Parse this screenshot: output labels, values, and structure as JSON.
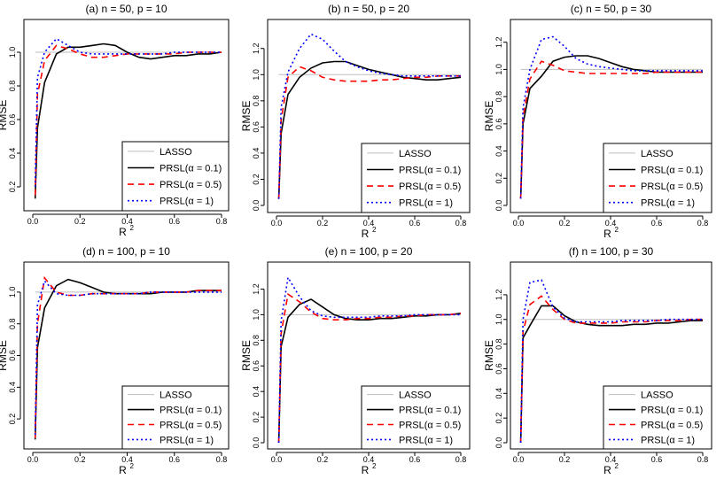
{
  "chart_data": [
    {
      "type": "line",
      "title": "(a)  n = 50,  p = 10",
      "xlabel": "R",
      "xlabel_sup": "2",
      "ylabel": "RMSE",
      "xlim": [
        0,
        0.8
      ],
      "ylim": [
        0.1,
        1.1
      ],
      "xticks": [
        "0.0",
        "0.2",
        "0.4",
        "0.6",
        "0.8"
      ],
      "yticks": [
        "0.2",
        "0.4",
        "0.6",
        "0.8",
        "1.0"
      ],
      "x": [
        0.01,
        0.02,
        0.05,
        0.1,
        0.15,
        0.2,
        0.25,
        0.3,
        0.35,
        0.4,
        0.45,
        0.5,
        0.55,
        0.6,
        0.65,
        0.7,
        0.75,
        0.8
      ],
      "series": [
        {
          "name": "LASSO",
          "legend_prefix": "LASSO",
          "legend_alpha": "",
          "color": "#bebebe",
          "dash": "",
          "values": [
            1.0,
            1.0,
            1.0,
            1.0,
            1.0,
            1.0,
            1.0,
            1.0,
            1.0,
            1.0,
            1.0,
            1.0,
            1.0,
            1.0,
            1.0,
            1.0,
            1.0,
            1.0
          ]
        },
        {
          "name": "PRSL(α = 0.1)",
          "legend_prefix": "PRSL(",
          "legend_alpha": "α = 0.1)",
          "color": "#000000",
          "dash": "",
          "values": [
            0.13,
            0.55,
            0.82,
            0.99,
            1.03,
            1.03,
            1.04,
            1.05,
            1.04,
            1.0,
            0.97,
            0.96,
            0.97,
            0.98,
            0.98,
            0.99,
            0.99,
            1.0
          ]
        },
        {
          "name": "PRSL(α = 0.5)",
          "legend_prefix": "PRSL(",
          "legend_alpha": "α = 0.5)",
          "color": "#ff0000",
          "dash": "7,5",
          "values": [
            0.15,
            0.75,
            0.95,
            1.04,
            1.02,
            0.99,
            0.97,
            0.97,
            0.98,
            0.99,
            0.99,
            0.99,
            0.99,
            0.99,
            1.0,
            1.0,
            1.0,
            1.0
          ]
        },
        {
          "name": "PRSL(α = 1)",
          "legend_prefix": "PRSL(",
          "legend_alpha": "α = 1)",
          "color": "#0000ff",
          "dash": "2,3",
          "values": [
            0.2,
            0.85,
            1.0,
            1.08,
            1.04,
            1.0,
            0.99,
            0.99,
            0.99,
            0.99,
            0.99,
            0.99,
            0.99,
            1.0,
            1.0,
            1.0,
            1.0,
            1.0
          ]
        }
      ]
    },
    {
      "type": "line",
      "title": "(b)  n = 50,  p = 20",
      "xlabel": "R",
      "xlabel_sup": "2",
      "ylabel": "RMSE",
      "xlim": [
        0,
        0.8
      ],
      "ylim": [
        0,
        1.3
      ],
      "xticks": [
        "0.0",
        "0.2",
        "0.4",
        "0.6",
        "0.8"
      ],
      "yticks": [
        "0.0",
        "0.2",
        "0.4",
        "0.6",
        "0.8",
        "1.0",
        "1.2"
      ],
      "x": [
        0.01,
        0.02,
        0.05,
        0.1,
        0.15,
        0.2,
        0.25,
        0.3,
        0.35,
        0.4,
        0.45,
        0.5,
        0.55,
        0.6,
        0.65,
        0.7,
        0.75,
        0.8
      ],
      "series": [
        {
          "name": "LASSO",
          "legend_prefix": "LASSO",
          "legend_alpha": "",
          "color": "#bebebe",
          "dash": "",
          "values": [
            1.0,
            1.0,
            1.0,
            1.0,
            1.0,
            1.0,
            1.0,
            1.0,
            1.0,
            1.0,
            1.0,
            1.0,
            1.0,
            1.0,
            1.0,
            1.0,
            1.0,
            1.0
          ]
        },
        {
          "name": "PRSL(α = 0.1)",
          "legend_prefix": "PRSL(",
          "legend_alpha": "α = 0.1)",
          "color": "#000000",
          "dash": "",
          "values": [
            0.05,
            0.55,
            0.85,
            0.98,
            1.05,
            1.09,
            1.1,
            1.1,
            1.07,
            1.04,
            1.02,
            1.0,
            0.98,
            0.97,
            0.96,
            0.96,
            0.97,
            0.98
          ]
        },
        {
          "name": "PRSL(α = 0.5)",
          "legend_prefix": "PRSL(",
          "legend_alpha": "α = 0.5)",
          "color": "#ff0000",
          "dash": "7,5",
          "values": [
            0.05,
            0.65,
            0.98,
            1.06,
            1.03,
            0.98,
            0.96,
            0.95,
            0.95,
            0.95,
            0.96,
            0.96,
            0.97,
            0.98,
            0.98,
            0.99,
            0.99,
            0.99
          ]
        },
        {
          "name": "PRSL(α = 1)",
          "legend_prefix": "PRSL(",
          "legend_alpha": "α = 1)",
          "color": "#0000ff",
          "dash": "2,3",
          "values": [
            0.05,
            0.75,
            1.02,
            1.2,
            1.31,
            1.27,
            1.18,
            1.1,
            1.06,
            1.03,
            1.01,
            1.0,
            0.99,
            0.99,
            0.99,
            0.99,
            0.99,
            0.99
          ]
        }
      ]
    },
    {
      "type": "line",
      "title": "(c)  n = 50,  p = 30",
      "xlabel": "R",
      "xlabel_sup": "2",
      "ylabel": "RMSE",
      "xlim": [
        0,
        0.8
      ],
      "ylim": [
        0,
        1.25
      ],
      "xticks": [
        "0.0",
        "0.2",
        "0.4",
        "0.6",
        "0.8"
      ],
      "yticks": [
        "0.0",
        "0.2",
        "0.4",
        "0.6",
        "0.8",
        "1.0",
        "1.2"
      ],
      "x": [
        0.01,
        0.02,
        0.05,
        0.1,
        0.15,
        0.2,
        0.25,
        0.3,
        0.35,
        0.4,
        0.45,
        0.5,
        0.55,
        0.6,
        0.65,
        0.7,
        0.75,
        0.8
      ],
      "series": [
        {
          "name": "LASSO",
          "legend_prefix": "LASSO",
          "legend_alpha": "",
          "color": "#bebebe",
          "dash": "",
          "values": [
            1.0,
            1.0,
            1.0,
            1.0,
            1.0,
            1.0,
            1.0,
            1.0,
            1.0,
            1.0,
            1.0,
            1.0,
            1.0,
            1.0,
            1.0,
            1.0,
            1.0,
            1.0
          ]
        },
        {
          "name": "PRSL(α = 0.1)",
          "legend_prefix": "PRSL(",
          "legend_alpha": "α = 0.1)",
          "color": "#000000",
          "dash": "",
          "values": [
            0.05,
            0.6,
            0.86,
            0.95,
            1.06,
            1.09,
            1.1,
            1.1,
            1.08,
            1.05,
            1.02,
            1.0,
            0.99,
            0.98,
            0.98,
            0.98,
            0.98,
            0.98
          ]
        },
        {
          "name": "PRSL(α = 0.5)",
          "legend_prefix": "PRSL(",
          "legend_alpha": "α = 0.5)",
          "color": "#ff0000",
          "dash": "7,5",
          "values": [
            0.05,
            0.65,
            0.93,
            1.06,
            1.03,
            0.99,
            0.98,
            0.97,
            0.97,
            0.97,
            0.97,
            0.97,
            0.97,
            0.98,
            0.98,
            0.98,
            0.98,
            0.98
          ]
        },
        {
          "name": "PRSL(α = 1)",
          "legend_prefix": "PRSL(",
          "legend_alpha": "α = 1)",
          "color": "#0000ff",
          "dash": "2,3",
          "values": [
            0.05,
            0.72,
            1.0,
            1.22,
            1.24,
            1.17,
            1.08,
            1.04,
            1.02,
            1.01,
            1.0,
            0.99,
            0.99,
            0.99,
            0.99,
            0.99,
            0.99,
            0.99
          ]
        }
      ]
    },
    {
      "type": "line",
      "title": "(d)  n = 100,  p = 10",
      "xlabel": "R",
      "xlabel_sup": "2",
      "ylabel": "RMSE",
      "xlim": [
        0,
        0.8
      ],
      "ylim": [
        0.05,
        1.1
      ],
      "xticks": [
        "0.0",
        "0.2",
        "0.4",
        "0.6",
        "0.8"
      ],
      "yticks": [
        "0.2",
        "0.4",
        "0.6",
        "0.8",
        "1.0"
      ],
      "x": [
        0.01,
        0.02,
        0.05,
        0.1,
        0.15,
        0.2,
        0.25,
        0.3,
        0.35,
        0.4,
        0.45,
        0.5,
        0.55,
        0.6,
        0.65,
        0.7,
        0.75,
        0.8
      ],
      "series": [
        {
          "name": "LASSO",
          "legend_prefix": "LASSO",
          "legend_alpha": "",
          "color": "#bebebe",
          "dash": "",
          "values": [
            1.0,
            1.0,
            1.0,
            1.0,
            1.0,
            1.0,
            1.0,
            1.0,
            1.0,
            1.0,
            1.0,
            1.0,
            1.0,
            1.0,
            1.0,
            1.0,
            1.0,
            1.0
          ]
        },
        {
          "name": "PRSL(α = 0.1)",
          "legend_prefix": "PRSL(",
          "legend_alpha": "α = 0.1)",
          "color": "#000000",
          "dash": "",
          "values": [
            0.07,
            0.65,
            0.9,
            1.04,
            1.08,
            1.06,
            1.03,
            1.0,
            0.99,
            0.99,
            0.99,
            0.99,
            1.0,
            1.0,
            1.0,
            1.01,
            1.01,
            1.01
          ]
        },
        {
          "name": "PRSL(α = 0.5)",
          "legend_prefix": "PRSL(",
          "legend_alpha": "α = 0.5)",
          "color": "#ff0000",
          "dash": "7,5",
          "values": [
            0.08,
            0.8,
            1.09,
            1.0,
            0.98,
            0.98,
            0.99,
            0.99,
            0.99,
            0.99,
            0.99,
            1.0,
            1.0,
            1.0,
            1.0,
            1.01,
            1.01,
            1.01
          ]
        },
        {
          "name": "PRSL(α = 1)",
          "legend_prefix": "PRSL(",
          "legend_alpha": "α = 1)",
          "color": "#0000ff",
          "dash": "2,3",
          "values": [
            0.1,
            0.92,
            1.07,
            0.99,
            0.98,
            0.98,
            0.99,
            0.99,
            0.99,
            0.99,
            0.99,
            1.0,
            1.0,
            1.0,
            1.0,
            1.0,
            1.0,
            1.0
          ]
        }
      ]
    },
    {
      "type": "line",
      "title": "(e)  n = 100,  p = 20",
      "xlabel": "R",
      "xlabel_sup": "2",
      "ylabel": "RMSE",
      "xlim": [
        0,
        0.8
      ],
      "ylim": [
        0,
        1.3
      ],
      "xticks": [
        "0.0",
        "0.2",
        "0.4",
        "0.6",
        "0.8"
      ],
      "yticks": [
        "0.0",
        "0.2",
        "0.4",
        "0.6",
        "0.8",
        "1.0",
        "1.2"
      ],
      "x": [
        0.01,
        0.02,
        0.05,
        0.1,
        0.15,
        0.2,
        0.25,
        0.3,
        0.35,
        0.4,
        0.45,
        0.5,
        0.55,
        0.6,
        0.65,
        0.7,
        0.75,
        0.8
      ],
      "series": [
        {
          "name": "LASSO",
          "legend_prefix": "LASSO",
          "legend_alpha": "",
          "color": "#bebebe",
          "dash": "",
          "values": [
            1.0,
            1.0,
            1.0,
            1.0,
            1.0,
            1.0,
            1.0,
            1.0,
            1.0,
            1.0,
            1.0,
            1.0,
            1.0,
            1.0,
            1.0,
            1.0,
            1.0,
            1.0
          ]
        },
        {
          "name": "PRSL(α = 0.1)",
          "legend_prefix": "PRSL(",
          "legend_alpha": "α = 0.1)",
          "color": "#000000",
          "dash": "",
          "values": [
            0.0,
            0.75,
            0.98,
            1.08,
            1.12,
            1.06,
            1.0,
            0.97,
            0.96,
            0.96,
            0.97,
            0.97,
            0.98,
            0.99,
            0.99,
            1.0,
            1.0,
            1.01
          ]
        },
        {
          "name": "PRSL(α = 0.5)",
          "legend_prefix": "PRSL(",
          "legend_alpha": "α = 0.5)",
          "color": "#ff0000",
          "dash": "7,5",
          "values": [
            0.0,
            0.85,
            1.16,
            1.1,
            1.02,
            0.97,
            0.96,
            0.96,
            0.97,
            0.97,
            0.98,
            0.98,
            0.99,
            0.99,
            1.0,
            1.0,
            1.0,
            1.01
          ]
        },
        {
          "name": "PRSL(α = 1)",
          "legend_prefix": "PRSL(",
          "legend_alpha": "α = 1)",
          "color": "#0000ff",
          "dash": "2,3",
          "values": [
            0.0,
            0.95,
            1.29,
            1.14,
            1.03,
            0.99,
            0.98,
            0.98,
            0.98,
            0.98,
            0.99,
            0.99,
            0.99,
            1.0,
            1.0,
            1.0,
            1.0,
            1.0
          ]
        }
      ]
    },
    {
      "type": "line",
      "title": "(f)  n = 100,  p = 30",
      "xlabel": "R",
      "xlabel_sup": "2",
      "ylabel": "RMSE",
      "xlim": [
        0,
        0.8
      ],
      "ylim": [
        0,
        1.35
      ],
      "xticks": [
        "0.0",
        "0.2",
        "0.4",
        "0.6",
        "0.8"
      ],
      "yticks": [
        "0.0",
        "0.2",
        "0.4",
        "0.6",
        "0.8",
        "1.0",
        "1.2"
      ],
      "x": [
        0.01,
        0.02,
        0.05,
        0.1,
        0.15,
        0.2,
        0.25,
        0.3,
        0.35,
        0.4,
        0.45,
        0.5,
        0.55,
        0.6,
        0.65,
        0.7,
        0.75,
        0.8
      ],
      "series": [
        {
          "name": "LASSO",
          "legend_prefix": "LASSO",
          "legend_alpha": "",
          "color": "#bebebe",
          "dash": "",
          "values": [
            1.0,
            1.0,
            1.0,
            1.0,
            1.0,
            1.0,
            1.0,
            1.0,
            1.0,
            1.0,
            1.0,
            1.0,
            1.0,
            1.0,
            1.0,
            1.0,
            1.0,
            1.0
          ]
        },
        {
          "name": "PRSL(α = 0.1)",
          "legend_prefix": "PRSL(",
          "legend_alpha": "α = 0.1)",
          "color": "#000000",
          "dash": "",
          "values": [
            0.0,
            0.85,
            0.95,
            1.11,
            1.11,
            1.03,
            0.98,
            0.96,
            0.95,
            0.95,
            0.95,
            0.96,
            0.96,
            0.97,
            0.97,
            0.98,
            0.99,
            0.99
          ]
        },
        {
          "name": "PRSL(α = 0.5)",
          "legend_prefix": "PRSL(",
          "legend_alpha": "α = 0.5)",
          "color": "#ff0000",
          "dash": "7,5",
          "values": [
            0.0,
            0.9,
            1.12,
            1.19,
            1.08,
            1.0,
            0.97,
            0.97,
            0.97,
            0.97,
            0.98,
            0.98,
            0.98,
            0.99,
            0.99,
            0.99,
            1.0,
            1.0
          ]
        },
        {
          "name": "PRSL(α = 1)",
          "legend_prefix": "PRSL(",
          "legend_alpha": "α = 1)",
          "color": "#0000ff",
          "dash": "2,3",
          "values": [
            0.0,
            1.0,
            1.3,
            1.32,
            1.1,
            1.01,
            0.98,
            0.98,
            0.98,
            0.98,
            0.99,
            0.99,
            0.99,
            0.99,
            1.0,
            1.0,
            1.0,
            1.0
          ]
        }
      ]
    }
  ]
}
